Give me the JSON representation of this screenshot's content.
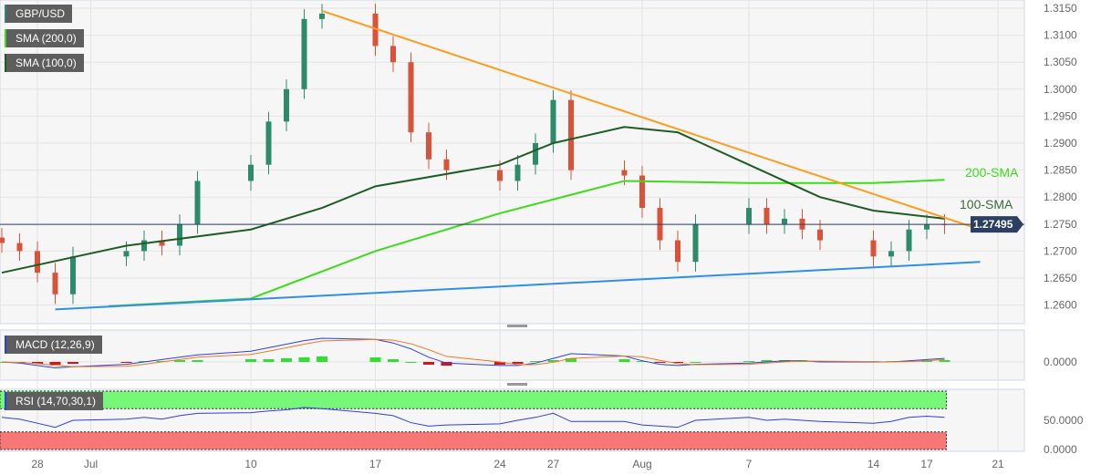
{
  "chart_data": {
    "type": "candlestick",
    "symbol": "GBP/USD",
    "legend": [
      {
        "label": "GBP/USD",
        "color": "#2a8a80"
      },
      {
        "label": "SMA (200,0)",
        "color": "#3ddc1a"
      },
      {
        "label": "SMA (100,0)",
        "color": "#1f5c23"
      }
    ],
    "x_ticks": [
      {
        "date": "2023-06-28",
        "label": "28"
      },
      {
        "date": "2023-07-01",
        "label": "Jul"
      },
      {
        "date": "2023-07-10",
        "label": "10"
      },
      {
        "date": "2023-07-17",
        "label": "17"
      },
      {
        "date": "2023-07-24",
        "label": "24"
      },
      {
        "date": "2023-07-27",
        "label": "27"
      },
      {
        "date": "2023-08-01",
        "label": "Aug"
      },
      {
        "date": "2023-08-07",
        "label": "7"
      },
      {
        "date": "2023-08-14",
        "label": "14"
      },
      {
        "date": "2023-08-17",
        "label": "17"
      },
      {
        "date": "2023-08-21",
        "label": "21"
      }
    ],
    "y_ticks": [
      "1.3150",
      "1.3100",
      "1.3050",
      "1.3000",
      "1.2950",
      "1.2900",
      "1.2850",
      "1.2800",
      "1.2750",
      "1.2700",
      "1.2650",
      "1.2600"
    ],
    "ylim": [
      1.258,
      1.3165
    ],
    "current_price": "1.27495",
    "closes": [
      [
        "2023-06-26",
        1.2715
      ],
      [
        "2023-06-27",
        1.27
      ],
      [
        "2023-06-28",
        1.266
      ],
      [
        "2023-06-29",
        1.262
      ],
      [
        "2023-06-30",
        1.269
      ],
      [
        "2023-07-03",
        1.27
      ],
      [
        "2023-07-04",
        1.272
      ],
      [
        "2023-07-05",
        1.271
      ],
      [
        "2023-07-06",
        1.275
      ],
      [
        "2023-07-07",
        1.283
      ],
      [
        "2023-07-10",
        1.286
      ],
      [
        "2023-07-11",
        1.294
      ],
      [
        "2023-07-12",
        1.3
      ],
      [
        "2023-07-13",
        1.313
      ],
      [
        "2023-07-14",
        1.314
      ],
      [
        "2023-07-17",
        1.308
      ],
      [
        "2023-07-18",
        1.305
      ],
      [
        "2023-07-19",
        1.292
      ],
      [
        "2023-07-20",
        1.287
      ],
      [
        "2023-07-21",
        1.285
      ],
      [
        "2023-07-24",
        1.283
      ],
      [
        "2023-07-25",
        1.286
      ],
      [
        "2023-07-26",
        1.29
      ],
      [
        "2023-07-27",
        1.298
      ],
      [
        "2023-07-28",
        1.285
      ],
      [
        "2023-07-31",
        1.284
      ],
      [
        "2023-08-01",
        1.278
      ],
      [
        "2023-08-02",
        1.272
      ],
      [
        "2023-08-03",
        1.268
      ],
      [
        "2023-08-04",
        1.275
      ],
      [
        "2023-08-07",
        1.278
      ],
      [
        "2023-08-08",
        1.275
      ],
      [
        "2023-08-09",
        1.276
      ],
      [
        "2023-08-10",
        1.274
      ],
      [
        "2023-08-11",
        1.272
      ],
      [
        "2023-08-14",
        1.269
      ],
      [
        "2023-08-15",
        1.27
      ],
      [
        "2023-08-16",
        1.274
      ],
      [
        "2023-08-17",
        1.275
      ],
      [
        "2023-08-18",
        1.27495
      ]
    ],
    "sma200": [
      [
        "2023-07-02",
        1.2598
      ],
      [
        "2023-07-10",
        1.2612
      ],
      [
        "2023-07-17",
        1.27
      ],
      [
        "2023-07-24",
        1.277
      ],
      [
        "2023-07-31",
        1.283
      ],
      [
        "2023-08-07",
        1.2826
      ],
      [
        "2023-08-14",
        1.2826
      ],
      [
        "2023-08-18",
        1.2832
      ]
    ],
    "sma100": [
      [
        "2023-06-26",
        1.266
      ],
      [
        "2023-07-03",
        1.271
      ],
      [
        "2023-07-10",
        1.274
      ],
      [
        "2023-07-14",
        1.278
      ],
      [
        "2023-07-17",
        1.282
      ],
      [
        "2023-07-24",
        1.286
      ],
      [
        "2023-07-27",
        1.29
      ],
      [
        "2023-07-31",
        1.293
      ],
      [
        "2023-08-03",
        1.292
      ],
      [
        "2023-08-07",
        1.286
      ],
      [
        "2023-08-11",
        1.28
      ],
      [
        "2023-08-14",
        1.2775
      ],
      [
        "2023-08-18",
        1.276
      ]
    ],
    "resistance_line": [
      [
        "2023-07-14",
        1.3145
      ],
      [
        "2023-08-20",
        1.274
      ]
    ],
    "support_line": [
      [
        "2023-06-29",
        1.2592
      ],
      [
        "2023-08-20",
        1.268
      ]
    ],
    "annotations": [
      {
        "text": "200-SMA",
        "color": "#3ddc1a"
      },
      {
        "text": "100-SMA",
        "color": "#3a6b3a"
      }
    ],
    "macd": {
      "label": "MACD (12,26,9)",
      "zero_label": "0.0000",
      "hist": [
        0,
        -1,
        -2,
        -3,
        -2,
        -1,
        1,
        1,
        2,
        2,
        3,
        3,
        4,
        5,
        6,
        5,
        3,
        0,
        -3,
        -4,
        -3,
        -2,
        1,
        2,
        4,
        3,
        1,
        -1,
        -1,
        0,
        1,
        2,
        2,
        2,
        1,
        1,
        1,
        1,
        2,
        2
      ],
      "macd_line": [
        0,
        -1,
        -3,
        -5,
        -4,
        -2,
        0,
        2,
        4,
        6,
        9,
        12,
        15,
        18,
        20,
        19,
        16,
        11,
        4,
        -1,
        -3,
        -3,
        -1,
        3,
        7,
        5,
        1,
        -2,
        -3,
        -2,
        -1,
        0,
        1,
        1,
        0,
        0,
        0,
        1,
        2,
        3
      ]
    },
    "rsi": {
      "label": "RSI (14,70,30,1)",
      "tick_labels": [
        "50.0000",
        "0.0000"
      ],
      "values": [
        55,
        52,
        45,
        38,
        50,
        52,
        55,
        52,
        58,
        62,
        63,
        66,
        68,
        72,
        70,
        62,
        58,
        46,
        40,
        42,
        44,
        50,
        55,
        62,
        48,
        48,
        42,
        40,
        38,
        50,
        55,
        50,
        52,
        50,
        48,
        45,
        48,
        55,
        57,
        55
      ]
    }
  }
}
